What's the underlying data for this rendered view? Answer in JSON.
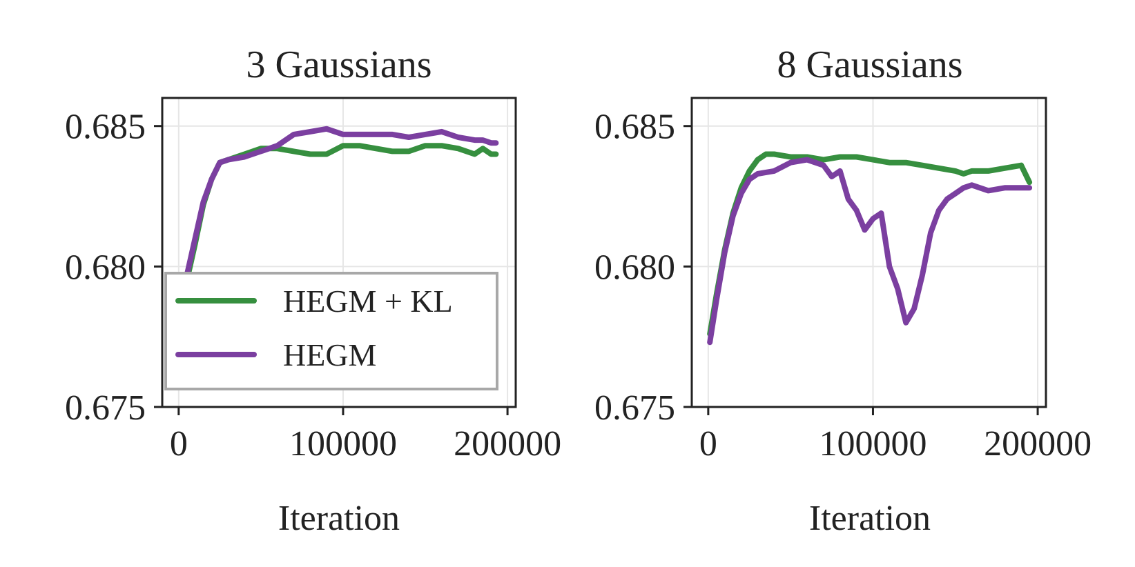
{
  "legend": {
    "items": [
      {
        "label": "HEGM + KL",
        "color": "#368f3f"
      },
      {
        "label": "HEGM",
        "color": "#7b3fa0"
      }
    ],
    "placement": "lower-left of first panel"
  },
  "chart_data": [
    {
      "type": "line",
      "title": "3 Gaussians",
      "xlabel": "Iteration",
      "ylabel": "",
      "xlim": [
        -10000,
        205000
      ],
      "ylim": [
        0.675,
        0.686
      ],
      "xticks": [
        0,
        100000,
        200000
      ],
      "xtick_labels": [
        "0",
        "100000",
        "200000"
      ],
      "yticks": [
        0.675,
        0.68,
        0.685
      ],
      "ytick_labels": [
        "0.675",
        "0.680",
        "0.685"
      ],
      "grid": true,
      "series": [
        {
          "name": "HEGM + KL",
          "color": "#368f3f",
          "x": [
            0,
            5000,
            10000,
            15000,
            20000,
            25000,
            30000,
            40000,
            50000,
            60000,
            70000,
            80000,
            90000,
            100000,
            110000,
            120000,
            130000,
            140000,
            150000,
            160000,
            170000,
            180000,
            185000,
            190000,
            193000
          ],
          "y": [
            0.677,
            0.6795,
            0.6808,
            0.6822,
            0.6831,
            0.6837,
            0.6838,
            0.684,
            0.6842,
            0.6842,
            0.6841,
            0.684,
            0.684,
            0.6843,
            0.6843,
            0.6842,
            0.6841,
            0.6841,
            0.6843,
            0.6843,
            0.6842,
            0.684,
            0.6842,
            0.684,
            0.684
          ]
        },
        {
          "name": "HEGM",
          "color": "#7b3fa0",
          "x": [
            0,
            5000,
            10000,
            15000,
            20000,
            25000,
            30000,
            40000,
            50000,
            60000,
            65000,
            70000,
            80000,
            90000,
            100000,
            110000,
            120000,
            130000,
            140000,
            150000,
            160000,
            170000,
            180000,
            185000,
            190000,
            193000
          ],
          "y": [
            0.6778,
            0.6797,
            0.681,
            0.6823,
            0.6831,
            0.6837,
            0.6838,
            0.6839,
            0.6841,
            0.6843,
            0.6845,
            0.6847,
            0.6848,
            0.6849,
            0.6847,
            0.6847,
            0.6847,
            0.6847,
            0.6846,
            0.6847,
            0.6848,
            0.6846,
            0.6845,
            0.6845,
            0.6844,
            0.6844
          ]
        }
      ]
    },
    {
      "type": "line",
      "title": "8 Gaussians",
      "xlabel": "Iteration",
      "ylabel": "",
      "xlim": [
        -10000,
        205000
      ],
      "ylim": [
        0.675,
        0.686
      ],
      "xticks": [
        0,
        100000,
        200000
      ],
      "xtick_labels": [
        "0",
        "100000",
        "200000"
      ],
      "yticks": [
        0.675,
        0.68,
        0.685
      ],
      "ytick_labels": [
        "0.675",
        "0.680",
        "0.685"
      ],
      "grid": true,
      "series": [
        {
          "name": "HEGM + KL",
          "color": "#368f3f",
          "x": [
            1000,
            5000,
            10000,
            15000,
            20000,
            25000,
            30000,
            35000,
            40000,
            50000,
            60000,
            70000,
            80000,
            90000,
            100000,
            110000,
            120000,
            130000,
            140000,
            150000,
            155000,
            160000,
            170000,
            180000,
            190000,
            195000
          ],
          "y": [
            0.6776,
            0.679,
            0.6806,
            0.6819,
            0.6828,
            0.6834,
            0.6838,
            0.684,
            0.684,
            0.6839,
            0.6839,
            0.6838,
            0.6839,
            0.6839,
            0.6838,
            0.6837,
            0.6837,
            0.6836,
            0.6835,
            0.6834,
            0.6833,
            0.6834,
            0.6834,
            0.6835,
            0.6836,
            0.683
          ]
        },
        {
          "name": "HEGM",
          "color": "#7b3fa0",
          "x": [
            1000,
            5000,
            10000,
            15000,
            20000,
            25000,
            30000,
            40000,
            50000,
            60000,
            70000,
            75000,
            80000,
            85000,
            90000,
            95000,
            100000,
            105000,
            110000,
            115000,
            120000,
            125000,
            130000,
            135000,
            140000,
            145000,
            150000,
            155000,
            160000,
            170000,
            180000,
            190000,
            195000
          ],
          "y": [
            0.6773,
            0.6788,
            0.6805,
            0.6818,
            0.6826,
            0.6831,
            0.6833,
            0.6834,
            0.6837,
            0.6838,
            0.6836,
            0.6832,
            0.6834,
            0.6824,
            0.682,
            0.6813,
            0.6817,
            0.6819,
            0.68,
            0.6792,
            0.678,
            0.6785,
            0.6797,
            0.6812,
            0.682,
            0.6824,
            0.6826,
            0.6828,
            0.6829,
            0.6827,
            0.6828,
            0.6828,
            0.6828
          ]
        }
      ]
    }
  ]
}
